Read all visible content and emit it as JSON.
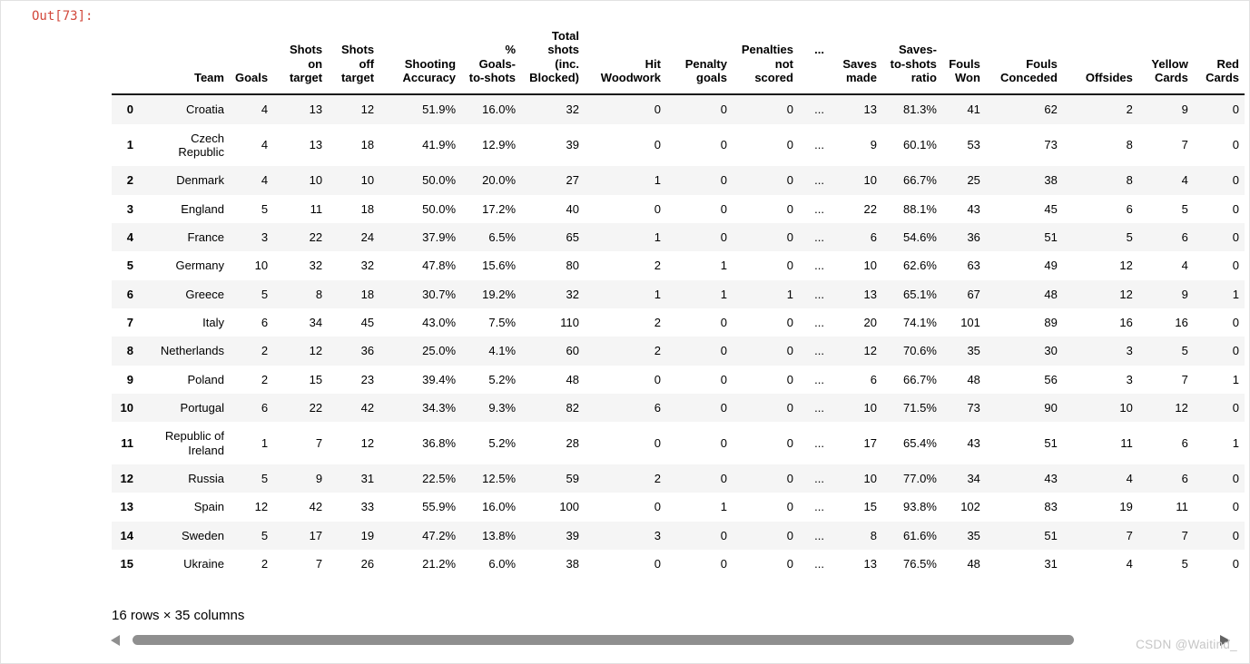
{
  "output_prompt": "Out[73]:",
  "colors": {
    "prompt_red": "#d2483b",
    "row_stripe": "#f5f5f5",
    "header_border": "#1a1a1a",
    "scrollbar_gray": "#8f8f8f"
  },
  "table": {
    "columns": [
      "",
      "Team",
      "Goals",
      "Shots on target",
      "Shots off target",
      "Shooting Accuracy",
      "% Goals-to-shots",
      "Total shots (inc. Blocked)",
      "Hit Woodwork",
      "Penalty goals",
      "Penalties not scored",
      "...",
      "Saves made",
      "Saves-to-shots ratio",
      "Fouls Won",
      "Fouls Conceded",
      "Offsides",
      "Yellow Cards",
      "Red Cards"
    ],
    "rows": [
      [
        "0",
        "Croatia",
        "4",
        "13",
        "12",
        "51.9%",
        "16.0%",
        "32",
        "0",
        "0",
        "0",
        "...",
        "13",
        "81.3%",
        "41",
        "62",
        "2",
        "9",
        "0"
      ],
      [
        "1",
        "Czech Republic",
        "4",
        "13",
        "18",
        "41.9%",
        "12.9%",
        "39",
        "0",
        "0",
        "0",
        "...",
        "9",
        "60.1%",
        "53",
        "73",
        "8",
        "7",
        "0"
      ],
      [
        "2",
        "Denmark",
        "4",
        "10",
        "10",
        "50.0%",
        "20.0%",
        "27",
        "1",
        "0",
        "0",
        "...",
        "10",
        "66.7%",
        "25",
        "38",
        "8",
        "4",
        "0"
      ],
      [
        "3",
        "England",
        "5",
        "11",
        "18",
        "50.0%",
        "17.2%",
        "40",
        "0",
        "0",
        "0",
        "...",
        "22",
        "88.1%",
        "43",
        "45",
        "6",
        "5",
        "0"
      ],
      [
        "4",
        "France",
        "3",
        "22",
        "24",
        "37.9%",
        "6.5%",
        "65",
        "1",
        "0",
        "0",
        "...",
        "6",
        "54.6%",
        "36",
        "51",
        "5",
        "6",
        "0"
      ],
      [
        "5",
        "Germany",
        "10",
        "32",
        "32",
        "47.8%",
        "15.6%",
        "80",
        "2",
        "1",
        "0",
        "...",
        "10",
        "62.6%",
        "63",
        "49",
        "12",
        "4",
        "0"
      ],
      [
        "6",
        "Greece",
        "5",
        "8",
        "18",
        "30.7%",
        "19.2%",
        "32",
        "1",
        "1",
        "1",
        "...",
        "13",
        "65.1%",
        "67",
        "48",
        "12",
        "9",
        "1"
      ],
      [
        "7",
        "Italy",
        "6",
        "34",
        "45",
        "43.0%",
        "7.5%",
        "110",
        "2",
        "0",
        "0",
        "...",
        "20",
        "74.1%",
        "101",
        "89",
        "16",
        "16",
        "0"
      ],
      [
        "8",
        "Netherlands",
        "2",
        "12",
        "36",
        "25.0%",
        "4.1%",
        "60",
        "2",
        "0",
        "0",
        "...",
        "12",
        "70.6%",
        "35",
        "30",
        "3",
        "5",
        "0"
      ],
      [
        "9",
        "Poland",
        "2",
        "15",
        "23",
        "39.4%",
        "5.2%",
        "48",
        "0",
        "0",
        "0",
        "...",
        "6",
        "66.7%",
        "48",
        "56",
        "3",
        "7",
        "1"
      ],
      [
        "10",
        "Portugal",
        "6",
        "22",
        "42",
        "34.3%",
        "9.3%",
        "82",
        "6",
        "0",
        "0",
        "...",
        "10",
        "71.5%",
        "73",
        "90",
        "10",
        "12",
        "0"
      ],
      [
        "11",
        "Republic of Ireland",
        "1",
        "7",
        "12",
        "36.8%",
        "5.2%",
        "28",
        "0",
        "0",
        "0",
        "...",
        "17",
        "65.4%",
        "43",
        "51",
        "11",
        "6",
        "1"
      ],
      [
        "12",
        "Russia",
        "5",
        "9",
        "31",
        "22.5%",
        "12.5%",
        "59",
        "2",
        "0",
        "0",
        "...",
        "10",
        "77.0%",
        "34",
        "43",
        "4",
        "6",
        "0"
      ],
      [
        "13",
        "Spain",
        "12",
        "42",
        "33",
        "55.9%",
        "16.0%",
        "100",
        "0",
        "1",
        "0",
        "...",
        "15",
        "93.8%",
        "102",
        "83",
        "19",
        "11",
        "0"
      ],
      [
        "14",
        "Sweden",
        "5",
        "17",
        "19",
        "47.2%",
        "13.8%",
        "39",
        "3",
        "0",
        "0",
        "...",
        "8",
        "61.6%",
        "35",
        "51",
        "7",
        "7",
        "0"
      ],
      [
        "15",
        "Ukraine",
        "2",
        "7",
        "26",
        "21.2%",
        "6.0%",
        "38",
        "0",
        "0",
        "0",
        "...",
        "13",
        "76.5%",
        "48",
        "31",
        "4",
        "5",
        "0"
      ]
    ],
    "summary": "16 rows × 35 columns"
  },
  "watermark": "CSDN @Waitind_"
}
